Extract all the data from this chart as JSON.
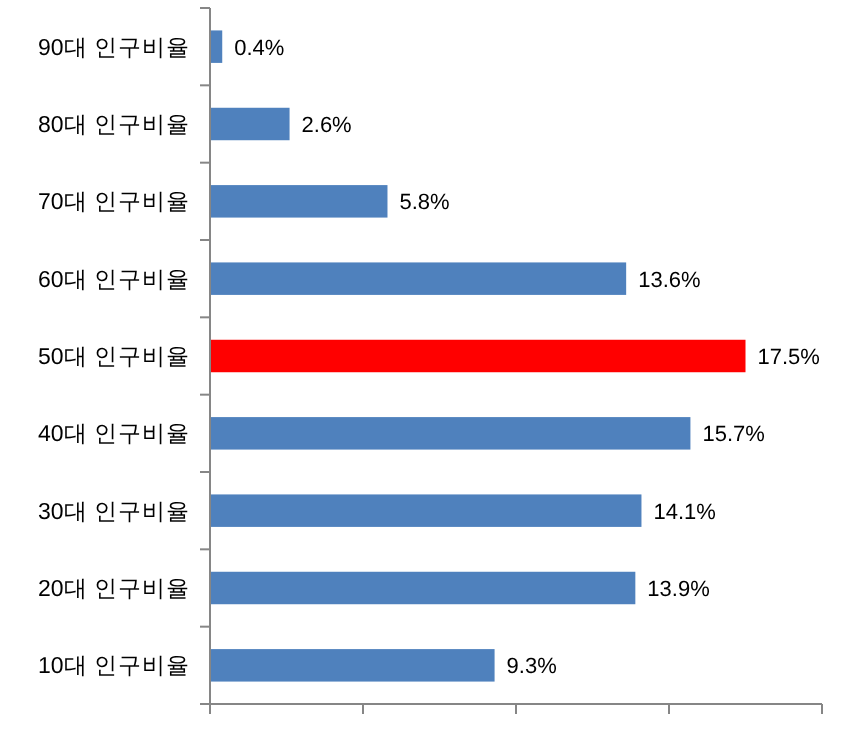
{
  "chart_data": {
    "type": "bar",
    "orientation": "horizontal",
    "categories": [
      "90대 인구비율",
      "80대 인구비율",
      "70대 인구비율",
      "60대 인구비율",
      "50대 인구비율",
      "40대 인구비율",
      "30대 인구비율",
      "20대 인구비율",
      "10대 인구비율"
    ],
    "values": [
      0.4,
      2.6,
      5.8,
      13.6,
      17.5,
      15.7,
      14.1,
      13.9,
      9.3
    ],
    "value_labels": [
      "0.4%",
      "2.6%",
      "5.8%",
      "13.6%",
      "17.5%",
      "15.7%",
      "14.1%",
      "13.9%",
      "9.3%"
    ],
    "colors": [
      "#4f81bd",
      "#4f81bd",
      "#4f81bd",
      "#4f81bd",
      "#ff0000",
      "#4f81bd",
      "#4f81bd",
      "#4f81bd",
      "#4f81bd"
    ],
    "xlim": [
      0,
      20
    ],
    "xticks": [
      {
        "value": 0,
        "label": null
      },
      {
        "value": 5,
        "label": null
      },
      {
        "value": 10,
        "label": null
      },
      {
        "value": 15,
        "label": null
      },
      {
        "value": 20,
        "label": null
      }
    ]
  }
}
